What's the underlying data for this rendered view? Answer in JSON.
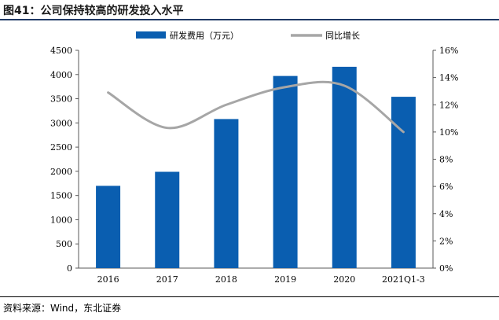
{
  "header": {
    "title": "图41：公司保持较高的研发投入水平"
  },
  "footer": {
    "source": "资料来源：Wind，东北证券"
  },
  "chart_data": {
    "type": "bar+line",
    "categories": [
      "2016",
      "2017",
      "2018",
      "2019",
      "2020",
      "2021Q1-3"
    ],
    "series": [
      {
        "name": "研发费用（万元）",
        "type": "bar",
        "axis": "left",
        "values": [
          1700,
          1990,
          3080,
          3970,
          4160,
          3540
        ],
        "color": "#0a5eb0"
      },
      {
        "name": "同比增长",
        "type": "line",
        "axis": "right",
        "values": [
          12.9,
          10.3,
          12.0,
          13.3,
          13.4,
          10.0
        ],
        "color": "#a6a6a6",
        "smooth": true
      }
    ],
    "left_axis": {
      "min": 0,
      "max": 4500,
      "step": 500,
      "ticks": [
        "0",
        "500",
        "1000",
        "1500",
        "2000",
        "2500",
        "3000",
        "3500",
        "4000",
        "4500"
      ]
    },
    "right_axis": {
      "min": 0,
      "max": 16,
      "step": 2,
      "ticks": [
        "0%",
        "2%",
        "4%",
        "6%",
        "8%",
        "10%",
        "12%",
        "14%",
        "16%"
      ]
    },
    "legend": {
      "position": "top",
      "items": [
        "研发费用（万元）",
        "同比增长"
      ]
    },
    "grid": false
  }
}
